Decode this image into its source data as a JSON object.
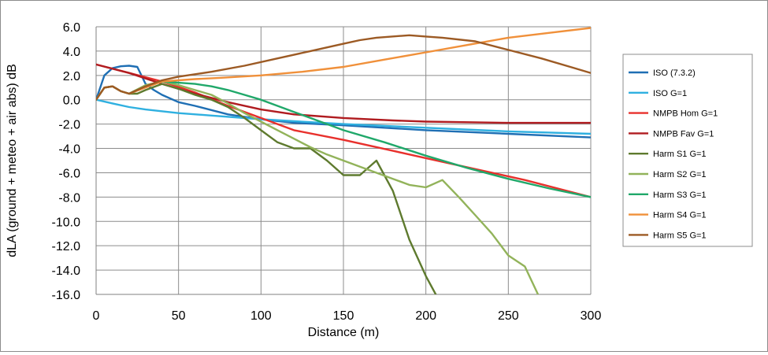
{
  "chart_data": {
    "type": "line",
    "xlabel": "Distance (m)",
    "ylabel": "dLA (ground + meteo + air abs)  dB",
    "xlim": [
      0,
      300
    ],
    "ylim": [
      -16,
      6
    ],
    "x_ticks": [
      0,
      50,
      100,
      150,
      200,
      250,
      300
    ],
    "x_tick_labels": [
      "0",
      "50",
      "100",
      "150",
      "200",
      "250",
      "300"
    ],
    "y_ticks": [
      6,
      4,
      2,
      0,
      -2,
      -4,
      -6,
      -8,
      -10,
      -12,
      -14,
      -16
    ],
    "y_tick_labels": [
      "6.0",
      "4.0",
      "2.0",
      "0.0",
      "-2.0",
      "-4.0",
      "-6.0",
      "-8.0",
      "-10.0",
      "-12.0",
      "-14.0",
      "-16.0"
    ],
    "grid": true,
    "legend_position": "right",
    "series": [
      {
        "name": "ISO (7.3.2)",
        "color": "#1f6fb4",
        "x": [
          0,
          5,
          10,
          15,
          20,
          25,
          30,
          35,
          40,
          50,
          60,
          80,
          100,
          120,
          150,
          200,
          250,
          300
        ],
        "y": [
          0,
          2.0,
          2.6,
          2.75,
          2.8,
          2.7,
          1.3,
          0.8,
          0.4,
          -0.2,
          -0.5,
          -1.2,
          -1.6,
          -1.9,
          -2.1,
          -2.5,
          -2.8,
          -3.1
        ]
      },
      {
        "name": "ISO G=1",
        "color": "#2fb0e0",
        "x": [
          0,
          10,
          20,
          30,
          50,
          70,
          100,
          150,
          200,
          250,
          300
        ],
        "y": [
          0,
          -0.3,
          -0.6,
          -0.8,
          -1.1,
          -1.3,
          -1.6,
          -2.0,
          -2.3,
          -2.6,
          -2.8
        ]
      },
      {
        "name": "NMPB Hom G=1",
        "color": "#e8302c",
        "x": [
          0,
          20,
          40,
          60,
          80,
          100,
          120,
          150,
          180,
          200,
          230,
          260,
          300
        ],
        "y": [
          2.9,
          2.2,
          1.5,
          0.6,
          -0.5,
          -1.5,
          -2.5,
          -3.3,
          -4.2,
          -4.8,
          -5.7,
          -6.6,
          -8.0
        ]
      },
      {
        "name": "NMPB Fav G=1",
        "color": "#b01c20",
        "x": [
          0,
          20,
          40,
          60,
          80,
          100,
          120,
          150,
          180,
          200,
          250,
          300
        ],
        "y": [
          2.9,
          2.2,
          1.3,
          0.5,
          -0.2,
          -0.8,
          -1.2,
          -1.5,
          -1.7,
          -1.8,
          -1.9,
          -1.9
        ]
      },
      {
        "name": "Harm S1 G=1",
        "color": "#5e7a2e",
        "x": [
          0,
          5,
          10,
          15,
          20,
          25,
          30,
          40,
          50,
          60,
          70,
          80,
          90,
          100,
          110,
          120,
          130,
          140,
          150,
          160,
          170,
          180,
          190,
          200,
          206
        ],
        "y": [
          0,
          1.0,
          1.1,
          0.7,
          0.5,
          0.5,
          0.8,
          1.3,
          0.9,
          0.4,
          0.0,
          -0.6,
          -1.5,
          -2.5,
          -3.5,
          -4.0,
          -4.0,
          -5.0,
          -6.2,
          -6.2,
          -5.0,
          -7.5,
          -11.5,
          -14.5,
          -16.0
        ]
      },
      {
        "name": "Harm S2 G=1",
        "color": "#92b35a",
        "x": [
          0,
          5,
          10,
          15,
          20,
          30,
          40,
          50,
          60,
          70,
          80,
          90,
          100,
          110,
          120,
          130,
          140,
          150,
          160,
          170,
          180,
          190,
          200,
          210,
          220,
          230,
          240,
          250,
          260,
          268
        ],
        "y": [
          0,
          1.0,
          1.1,
          0.7,
          0.5,
          1.2,
          1.5,
          1.2,
          0.8,
          0.4,
          -0.3,
          -1.1,
          -1.8,
          -2.5,
          -3.2,
          -3.9,
          -4.5,
          -5.0,
          -5.5,
          -6.0,
          -6.5,
          -7.0,
          -7.2,
          -6.6,
          -8.0,
          -9.5,
          -11.0,
          -12.8,
          -13.7,
          -16.0
        ]
      },
      {
        "name": "Harm S3 G=1",
        "color": "#20a86a",
        "x": [
          0,
          5,
          10,
          15,
          20,
          30,
          40,
          50,
          60,
          70,
          80,
          90,
          100,
          110,
          120,
          130,
          140,
          150,
          175,
          200,
          225,
          250,
          275,
          300
        ],
        "y": [
          0,
          1.0,
          1.1,
          0.7,
          0.5,
          1.1,
          1.5,
          1.4,
          1.3,
          1.1,
          0.8,
          0.4,
          0.0,
          -0.5,
          -1.0,
          -1.5,
          -2.0,
          -2.5,
          -3.5,
          -4.6,
          -5.6,
          -6.5,
          -7.3,
          -8.0
        ]
      },
      {
        "name": "Harm S4 G=1",
        "color": "#f0903a",
        "x": [
          0,
          5,
          10,
          15,
          20,
          30,
          40,
          50,
          60,
          75,
          100,
          125,
          150,
          175,
          200,
          225,
          250,
          275,
          300
        ],
        "y": [
          0,
          1.0,
          1.1,
          0.7,
          0.5,
          1.0,
          1.5,
          1.6,
          1.7,
          1.8,
          2.0,
          2.3,
          2.7,
          3.3,
          3.9,
          4.5,
          5.1,
          5.5,
          5.9
        ]
      },
      {
        "name": "Harm S5 G=1",
        "color": "#9c5a24",
        "x": [
          0,
          5,
          10,
          15,
          20,
          30,
          40,
          50,
          70,
          90,
          110,
          130,
          150,
          160,
          170,
          190,
          200,
          210,
          230,
          250,
          270,
          290,
          300
        ],
        "y": [
          0,
          1.0,
          1.1,
          0.7,
          0.5,
          1.1,
          1.6,
          1.9,
          2.3,
          2.8,
          3.4,
          4.0,
          4.6,
          4.9,
          5.1,
          5.3,
          5.2,
          5.1,
          4.8,
          4.1,
          3.4,
          2.6,
          2.2
        ]
      }
    ]
  }
}
